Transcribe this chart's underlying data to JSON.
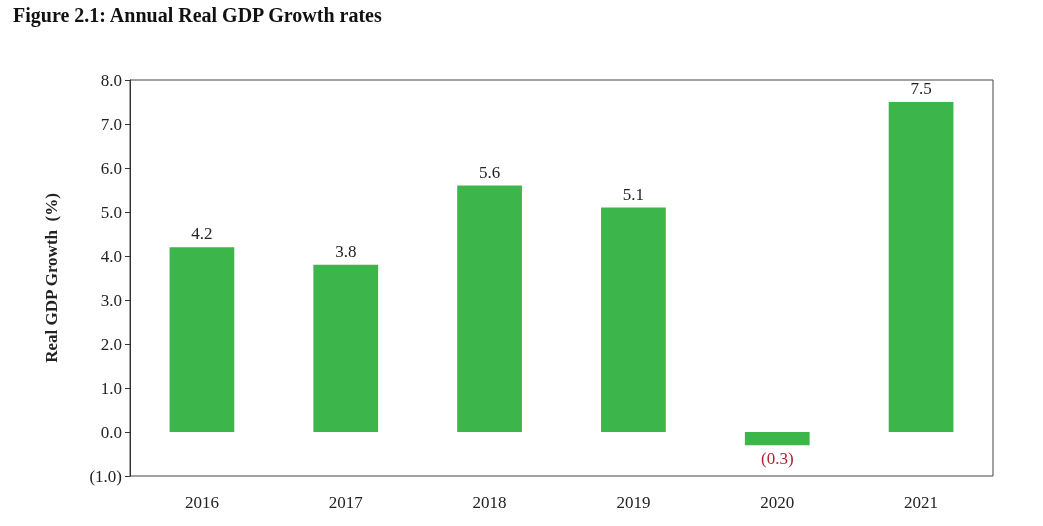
{
  "chart_data": {
    "type": "bar",
    "title": "Figure 2.1: Annual Real GDP Growth rates",
    "ylabel": "Real GDP Growth  (%)",
    "categories": [
      "2016",
      "2017",
      "2018",
      "2019",
      "2020",
      "2021"
    ],
    "values": [
      4.2,
      3.8,
      5.6,
      5.1,
      -0.3,
      7.5
    ],
    "value_labels": [
      "4.2",
      "3.8",
      "5.6",
      "5.1",
      "(0.3)",
      "7.5"
    ],
    "color": "#3cb54a",
    "ylim": [
      -1,
      8
    ],
    "yticks": [
      {
        "value": -1,
        "label": "(1.0)"
      },
      {
        "value": 0,
        "label": "0.0"
      },
      {
        "value": 1,
        "label": "1.0"
      },
      {
        "value": 2,
        "label": "2.0"
      },
      {
        "value": 3,
        "label": "3.0"
      },
      {
        "value": 4,
        "label": "4.0"
      },
      {
        "value": 5,
        "label": "5.0"
      },
      {
        "value": 6,
        "label": "6.0"
      },
      {
        "value": 7,
        "label": "7.0"
      },
      {
        "value": 8,
        "label": "8.0"
      }
    ],
    "grid": false
  }
}
